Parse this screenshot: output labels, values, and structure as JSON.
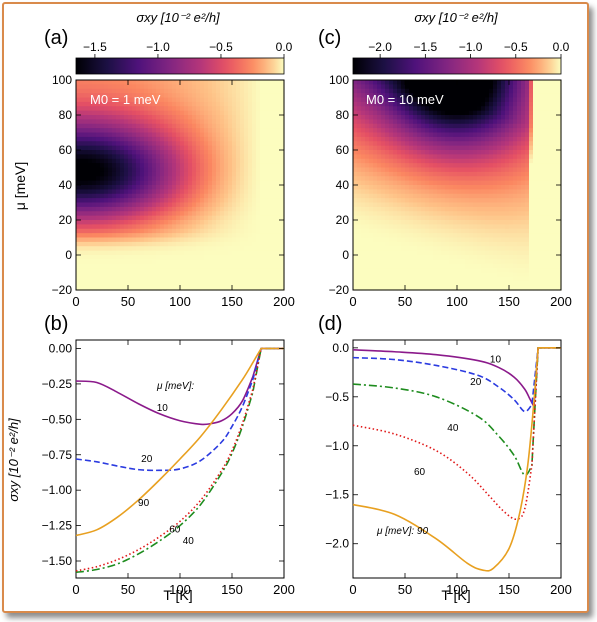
{
  "chart_data": [
    {
      "panel_label": "(a)",
      "type": "heatmap",
      "colorbar_label": "σxy [10⁻² e²/h]",
      "colorbar_ticks": [
        -1.5,
        -1.0,
        -0.5,
        0.0
      ],
      "colorbar_tick_labels": [
        "−1.5",
        "−1.0",
        "−0.5",
        "0.0"
      ],
      "vmin": -1.65,
      "vmax": 0.0,
      "annotation": "M0 = 1 meV",
      "xlabel": "",
      "ylabel": "μ [meV]",
      "xlim": [
        0,
        200
      ],
      "ylim": [
        -20,
        100
      ],
      "xticks": [
        0,
        50,
        100,
        150,
        200
      ],
      "yticks": [
        -20,
        0,
        20,
        40,
        60,
        80,
        100
      ],
      "transition_T": 178,
      "min_location": {
        "T": 20,
        "mu": 48
      }
    },
    {
      "panel_label": "(c)",
      "type": "heatmap",
      "colorbar_label": "σxy [10⁻² e²/h]",
      "colorbar_ticks": [
        -2.0,
        -1.5,
        -1.0,
        -0.5,
        0.0
      ],
      "colorbar_tick_labels": [
        "−2.0",
        "−1.5",
        "−1.0",
        "−0.5",
        "0.0"
      ],
      "vmin": -2.3,
      "vmax": 0.0,
      "annotation": "M0 = 10 meV",
      "xlabel": "",
      "ylabel": "",
      "xlim": [
        0,
        200
      ],
      "ylim": [
        -20,
        100
      ],
      "xticks": [
        0,
        50,
        100,
        150,
        200
      ],
      "yticks": [
        -20,
        0,
        20,
        40,
        60,
        80,
        100
      ],
      "transition_T": 178,
      "min_location": {
        "T": 100,
        "mu": 100
      }
    },
    {
      "panel_label": "(b)",
      "type": "line",
      "xlabel": "T [K]",
      "ylabel": "σxy [10⁻² e²/h]",
      "xlim": [
        0,
        200
      ],
      "ylim": [
        -1.62,
        0.06
      ],
      "xticks": [
        0,
        50,
        100,
        150,
        200
      ],
      "yticks": [
        0.0,
        -0.25,
        -0.5,
        -0.75,
        -1.0,
        -1.25,
        -1.5
      ],
      "ytick_labels": [
        "0.00",
        "−0.25",
        "−0.50",
        "−0.75",
        "−1.00",
        "−1.25",
        "−1.50"
      ],
      "legend_title": "μ [meV]:",
      "series": [
        {
          "name": "10",
          "color": "#8b1a8b",
          "dash": "solid",
          "x": [
            0,
            20,
            40,
            60,
            80,
            100,
            120,
            130,
            140,
            150,
            160,
            170,
            178,
            200
          ],
          "y": [
            -0.23,
            -0.24,
            -0.31,
            -0.39,
            -0.46,
            -0.51,
            -0.535,
            -0.53,
            -0.51,
            -0.46,
            -0.37,
            -0.2,
            0.0,
            0.0
          ]
        },
        {
          "name": "20",
          "color": "#2b3be0",
          "dash": "dashed",
          "x": [
            0,
            20,
            40,
            60,
            80,
            100,
            120,
            140,
            150,
            160,
            170,
            178,
            200
          ],
          "y": [
            -0.78,
            -0.8,
            -0.83,
            -0.855,
            -0.86,
            -0.85,
            -0.79,
            -0.66,
            -0.55,
            -0.41,
            -0.22,
            0.0,
            0.0
          ]
        },
        {
          "name": "40",
          "color": "#1e8c1e",
          "dash": "dashdot",
          "x": [
            0,
            20,
            40,
            60,
            80,
            100,
            120,
            140,
            150,
            160,
            170,
            178,
            200
          ],
          "y": [
            -1.58,
            -1.56,
            -1.52,
            -1.45,
            -1.36,
            -1.25,
            -1.1,
            -0.88,
            -0.74,
            -0.55,
            -0.31,
            0.0,
            0.0
          ]
        },
        {
          "name": "60",
          "color": "#e01818",
          "dash": "dotted",
          "x": [
            0,
            20,
            40,
            60,
            80,
            100,
            120,
            140,
            150,
            160,
            170,
            178,
            200
          ],
          "y": [
            -1.57,
            -1.54,
            -1.49,
            -1.42,
            -1.33,
            -1.22,
            -1.07,
            -0.86,
            -0.72,
            -0.53,
            -0.29,
            0.0,
            0.0
          ]
        },
        {
          "name": "90",
          "color": "#e8a020",
          "dash": "solid",
          "x": [
            0,
            20,
            40,
            60,
            80,
            100,
            120,
            140,
            160,
            170,
            178,
            200
          ],
          "y": [
            -1.32,
            -1.28,
            -1.19,
            -1.07,
            -0.93,
            -0.78,
            -0.62,
            -0.43,
            -0.22,
            -0.1,
            0.0,
            0.0
          ]
        }
      ]
    },
    {
      "panel_label": "(d)",
      "type": "line",
      "xlabel": "T [K]",
      "ylabel": "",
      "xlim": [
        0,
        200
      ],
      "ylim": [
        -2.35,
        0.08
      ],
      "xticks": [
        0,
        50,
        100,
        150,
        200
      ],
      "yticks": [
        0.0,
        -0.5,
        -1.0,
        -1.5,
        -2.0
      ],
      "ytick_labels": [
        "0.0",
        "−0.5",
        "−1.0",
        "−1.5",
        "−2.0"
      ],
      "legend_title": "μ [meV]: 90",
      "series": [
        {
          "name": "10",
          "color": "#8b1a8b",
          "dash": "solid",
          "x": [
            0,
            40,
            80,
            120,
            140,
            155,
            165,
            170,
            174,
            178,
            200
          ],
          "y": [
            -0.02,
            -0.04,
            -0.07,
            -0.13,
            -0.2,
            -0.3,
            -0.42,
            -0.52,
            -0.6,
            0.0,
            0.0
          ]
        },
        {
          "name": "20",
          "color": "#2b3be0",
          "dash": "dashed",
          "x": [
            0,
            40,
            80,
            120,
            140,
            155,
            165,
            172,
            178,
            200
          ],
          "y": [
            -0.1,
            -0.12,
            -0.18,
            -0.28,
            -0.4,
            -0.53,
            -0.65,
            -0.58,
            0.0,
            0.0
          ]
        },
        {
          "name": "40",
          "color": "#1e8c1e",
          "dash": "dashdot",
          "x": [
            0,
            40,
            80,
            120,
            140,
            155,
            165,
            172,
            178,
            200
          ],
          "y": [
            -0.37,
            -0.41,
            -0.5,
            -0.7,
            -0.9,
            -1.1,
            -1.3,
            -1.2,
            0.0,
            0.0
          ]
        },
        {
          "name": "60",
          "color": "#e01818",
          "dash": "dotted",
          "x": [
            0,
            40,
            80,
            110,
            130,
            145,
            157,
            165,
            172,
            178,
            200
          ],
          "y": [
            -0.79,
            -0.88,
            -1.05,
            -1.28,
            -1.5,
            -1.67,
            -1.75,
            -1.65,
            -1.2,
            0.0,
            0.0
          ]
        },
        {
          "name": "90",
          "color": "#e8a020",
          "dash": "solid",
          "x": [
            0,
            40,
            80,
            110,
            125,
            135,
            150,
            160,
            168,
            174,
            178,
            200
          ],
          "y": [
            -1.6,
            -1.7,
            -1.95,
            -2.2,
            -2.27,
            -2.25,
            -2.05,
            -1.7,
            -1.2,
            -0.55,
            0.0,
            0.0
          ]
        }
      ]
    }
  ]
}
